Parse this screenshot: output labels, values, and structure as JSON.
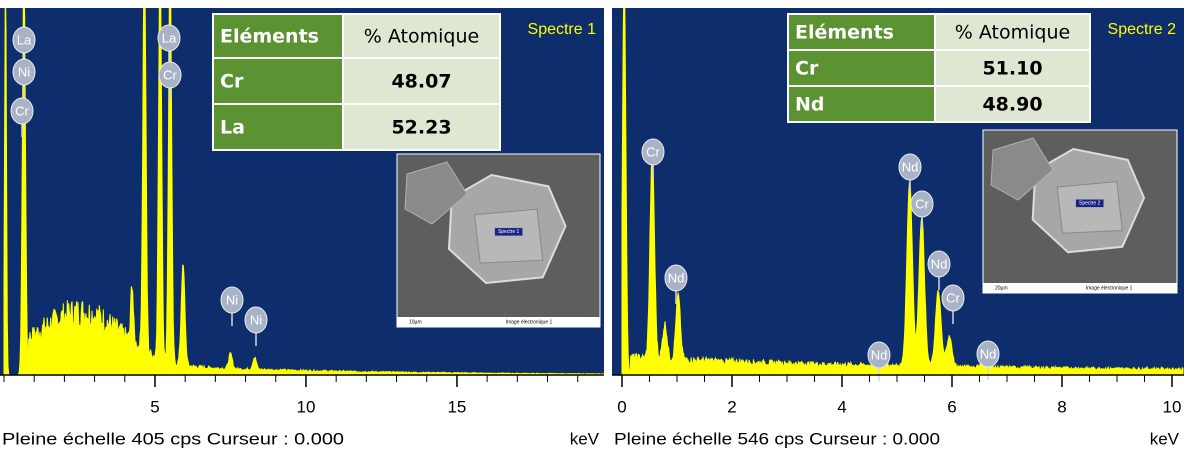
{
  "panels": [
    {
      "spectrum_label": "Spectre 1",
      "xlim": [
        0,
        19.87
      ],
      "xticks": [
        5,
        10,
        15
      ],
      "footer": "Pleine échelle 405 cps  Curseur : 0.000",
      "unit": "keV",
      "table": {
        "header": [
          "Eléments",
          "% Atomique"
        ],
        "rows": [
          [
            "Cr",
            "48.07"
          ],
          [
            "La",
            "52.23"
          ]
        ]
      },
      "peak_labels": [
        "La",
        "Ni",
        "Cr",
        "La",
        "Cr",
        "Ni",
        "Ni"
      ],
      "image": {
        "marker": "Spectre 1",
        "scale": "10µm",
        "caption": "Image électronique 1"
      }
    },
    {
      "spectrum_label": "Spectre 2",
      "xlim": [
        0,
        10.2
      ],
      "xticks": [
        0,
        2,
        4,
        6,
        8,
        10
      ],
      "footer": "Pleine échelle 546 cps  Curseur : 0.000",
      "unit": "keV",
      "table": {
        "header": [
          "Eléments",
          "% Atomique"
        ],
        "rows": [
          [
            "Cr",
            "51.10"
          ],
          [
            "Nd",
            "48.90"
          ]
        ]
      },
      "peak_labels": [
        "Cr",
        "Nd",
        "Nd",
        "Nd",
        "Cr",
        "Nd",
        "Cr",
        "Nd"
      ],
      "image": {
        "marker": "Spectre 2",
        "scale": "20µm",
        "caption": "Image électronique 1"
      }
    }
  ]
}
